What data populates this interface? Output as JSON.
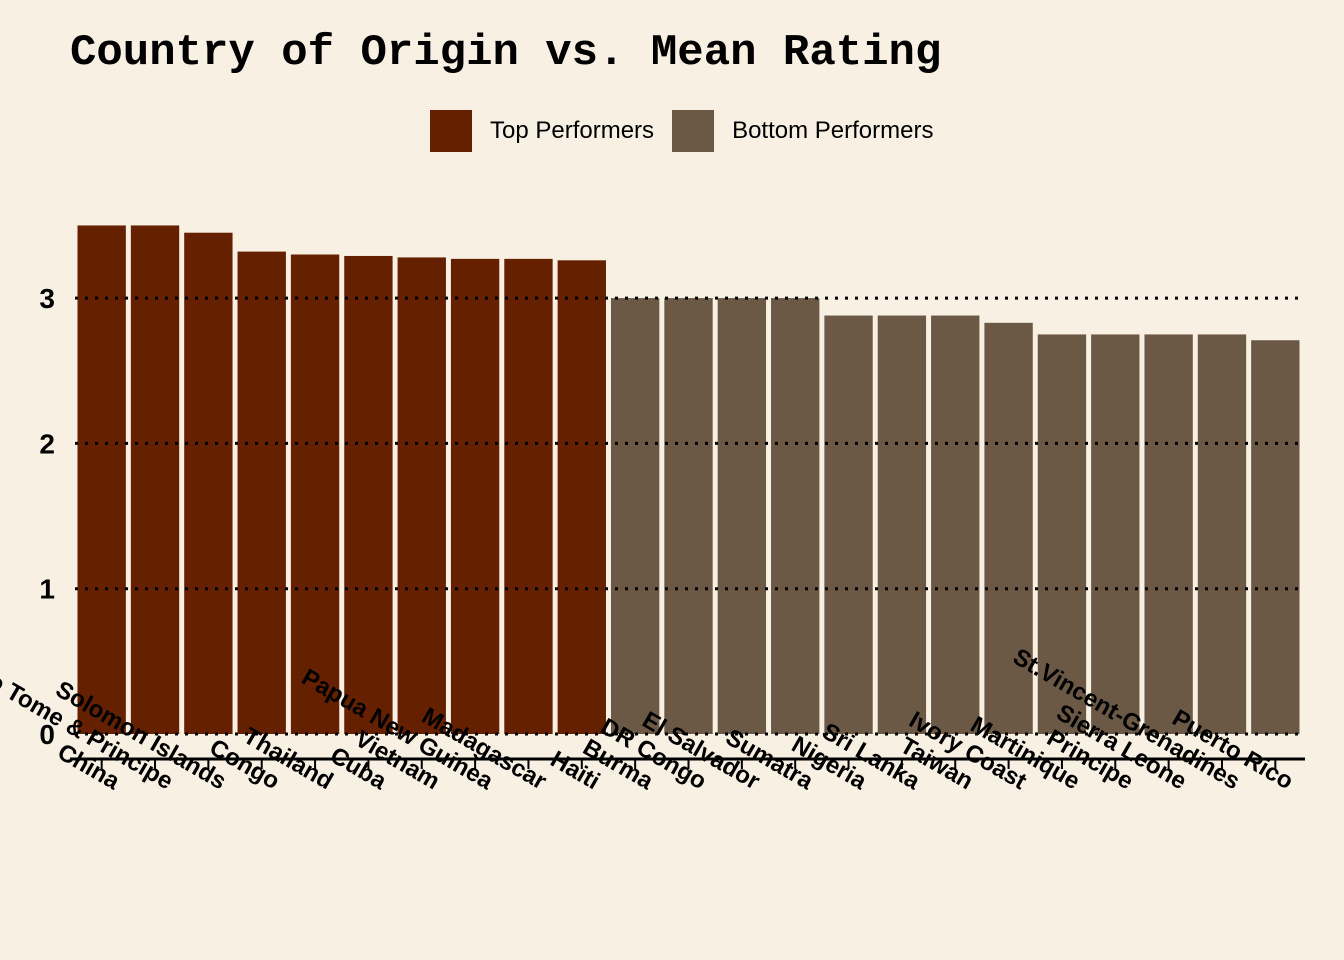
{
  "chart_data": {
    "type": "bar",
    "title": "Country of Origin vs. Mean Rating",
    "xlabel": "",
    "ylabel": "",
    "ylim": [
      0,
      3.6
    ],
    "yticks": [
      0,
      1,
      2,
      3
    ],
    "grid": "horizontal dotted",
    "legend_position": "top",
    "colors": {
      "top": "#652000",
      "bottom": "#6b5946",
      "background": "#f7f0e3"
    },
    "legend": [
      {
        "label": "Top Performers",
        "color": "#652000"
      },
      {
        "label": "Bottom Performers",
        "color": "#6b5946"
      }
    ],
    "categories": [
      "China",
      "Sao Tome & Principe",
      "Solomon Islands",
      "Congo",
      "Thailand",
      "Cuba",
      "Vietnam",
      "Papua New Guinea",
      "Madagascar",
      "Haiti",
      "Burma",
      "DR Congo",
      "El Salvador",
      "Sumatra",
      "Nigeria",
      "Sri Lanka",
      "Taiwan",
      "Ivory Coast",
      "Martinique",
      "Principe",
      "Sierra Leone",
      "St.Vincent-Grenadines",
      "Puerto Rico"
    ],
    "groups": [
      "top",
      "top",
      "top",
      "top",
      "top",
      "top",
      "top",
      "top",
      "top",
      "top",
      "bottom",
      "bottom",
      "bottom",
      "bottom",
      "bottom",
      "bottom",
      "bottom",
      "bottom",
      "bottom",
      "bottom",
      "bottom",
      "bottom",
      "bottom"
    ],
    "values": [
      3.5,
      3.5,
      3.45,
      3.32,
      3.3,
      3.29,
      3.28,
      3.27,
      3.27,
      3.26,
      3.0,
      3.0,
      3.0,
      3.0,
      2.88,
      2.88,
      2.88,
      2.83,
      2.75,
      2.75,
      2.75,
      2.75,
      2.71
    ]
  }
}
